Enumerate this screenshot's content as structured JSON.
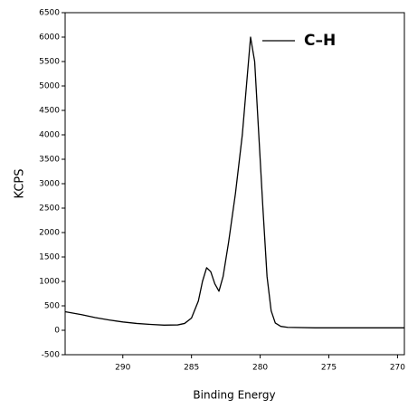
{
  "chart_data": {
    "type": "line",
    "xlabel": "Binding Energy",
    "ylabel": "KCPS",
    "annotation": "C–H",
    "x": [
      294.2,
      293,
      292,
      291,
      290,
      289,
      288,
      287,
      286,
      285.5,
      285,
      284.5,
      284.2,
      283.9,
      283.6,
      283.3,
      283.0,
      282.7,
      282.3,
      281.8,
      281.3,
      281.0,
      280.7,
      280.4,
      280.1,
      279.8,
      279.5,
      279.2,
      278.9,
      278.5,
      278,
      276,
      274,
      272,
      270,
      269.5
    ],
    "values": [
      380,
      320,
      260,
      210,
      170,
      140,
      120,
      105,
      110,
      140,
      250,
      600,
      1000,
      1280,
      1200,
      950,
      800,
      1100,
      1800,
      2800,
      4000,
      5000,
      6000,
      5500,
      4000,
      2500,
      1100,
      400,
      150,
      80,
      60,
      50,
      50,
      50,
      50,
      50
    ],
    "color": "#000000",
    "xlim": [
      294.2,
      269.5
    ],
    "xticks": [
      290,
      285,
      280,
      275,
      270
    ],
    "ylim": [
      -500,
      6500
    ],
    "yticks": [
      -500,
      0,
      500,
      1000,
      1500,
      2000,
      2500,
      3000,
      3500,
      4000,
      4500,
      5000,
      5500,
      6000,
      6500
    ],
    "grid": false
  }
}
